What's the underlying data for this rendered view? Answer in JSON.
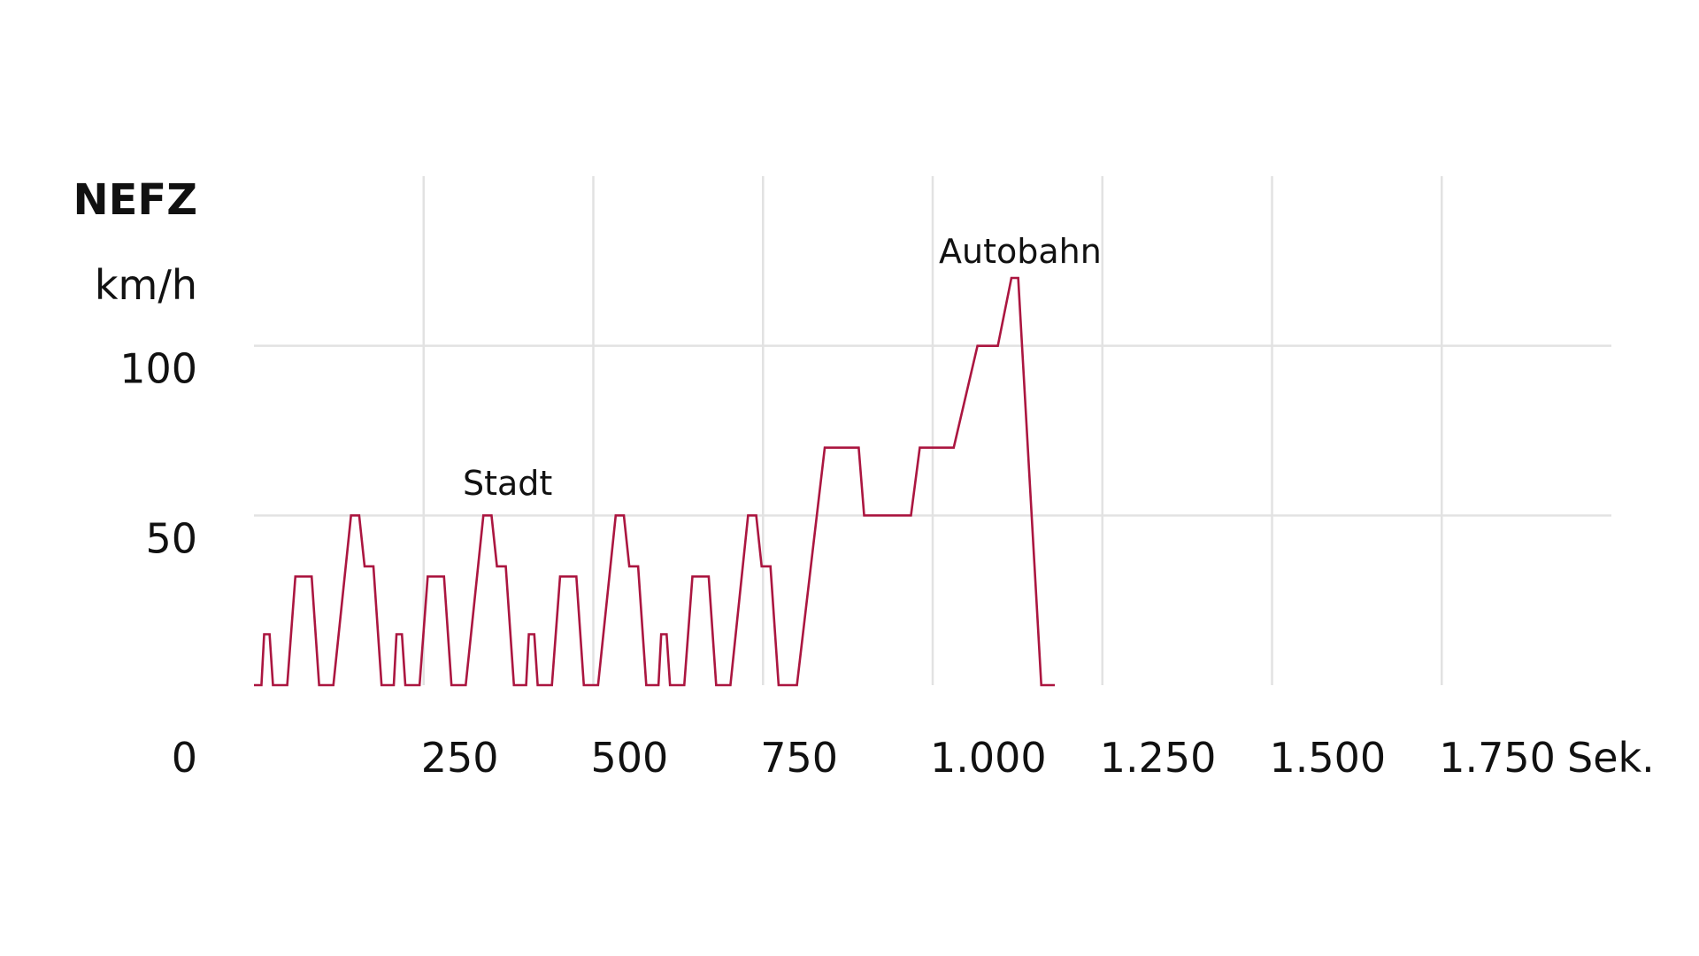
{
  "chart_data": {
    "type": "line",
    "title": "NEFZ",
    "y_label": "km/h",
    "x_label": "Sek.",
    "xlim": [
      0,
      2000
    ],
    "ylim": [
      0,
      150
    ],
    "xticks": [
      250,
      500,
      750,
      {
        "value": 1000,
        "label": "1.000"
      },
      {
        "value": 1250,
        "label": "1.250"
      },
      {
        "value": 1500,
        "label": "1.500"
      },
      {
        "value": 1750,
        "label": "1.750"
      }
    ],
    "yticks": [
      0,
      50,
      100
    ],
    "grid": true,
    "annotations": [
      "Stadt",
      "Autobahn"
    ],
    "x": [
      0,
      11,
      15,
      23,
      28,
      49,
      61,
      85,
      96,
      117,
      143,
      155,
      163,
      176,
      188,
      195,
      206,
      210,
      218,
      223,
      244,
      256,
      280,
      291,
      312,
      338,
      350,
      358,
      371,
      383,
      390,
      401,
      405,
      413,
      418,
      439,
      451,
      475,
      486,
      507,
      533,
      545,
      553,
      566,
      578,
      585,
      596,
      600,
      608,
      613,
      634,
      646,
      670,
      681,
      702,
      728,
      740,
      748,
      761,
      773,
      800,
      841,
      891,
      899,
      968,
      981,
      1031,
      1066,
      1096,
      1116,
      1126,
      1160,
      1180
    ],
    "series": [
      {
        "name": "NEFZ",
        "color": "#ab1640",
        "values": [
          0,
          0,
          15,
          15,
          0,
          0,
          32,
          32,
          0,
          0,
          50,
          50,
          35,
          35,
          0,
          0,
          0,
          15,
          15,
          0,
          0,
          32,
          32,
          0,
          0,
          50,
          50,
          35,
          35,
          0,
          0,
          0,
          15,
          15,
          0,
          0,
          32,
          32,
          0,
          0,
          50,
          50,
          35,
          35,
          0,
          0,
          0,
          15,
          15,
          0,
          0,
          32,
          32,
          0,
          0,
          50,
          50,
          35,
          35,
          0,
          0,
          70,
          70,
          50,
          50,
          70,
          70,
          100,
          100,
          120,
          120,
          0,
          0
        ]
      }
    ]
  }
}
